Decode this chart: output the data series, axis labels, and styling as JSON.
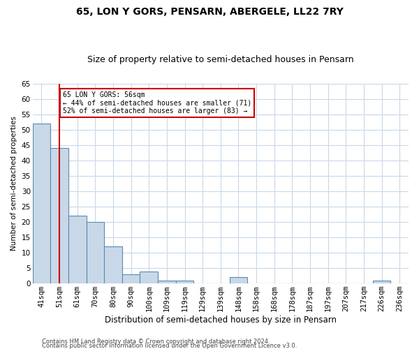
{
  "title1": "65, LON Y GORS, PENSARN, ABERGELE, LL22 7RY",
  "title2": "Size of property relative to semi-detached houses in Pensarn",
  "xlabel": "Distribution of semi-detached houses by size in Pensarn",
  "ylabel": "Number of semi-detached properties",
  "categories": [
    "41sqm",
    "51sqm",
    "61sqm",
    "70sqm",
    "80sqm",
    "90sqm",
    "100sqm",
    "109sqm",
    "119sqm",
    "129sqm",
    "139sqm",
    "148sqm",
    "158sqm",
    "168sqm",
    "178sqm",
    "187sqm",
    "197sqm",
    "207sqm",
    "217sqm",
    "226sqm",
    "236sqm"
  ],
  "values": [
    52,
    44,
    22,
    20,
    12,
    3,
    4,
    1,
    1,
    0,
    0,
    2,
    0,
    0,
    0,
    0,
    0,
    0,
    0,
    1,
    0
  ],
  "bar_color": "#c8d8e8",
  "bar_edge_color": "#5a8ab0",
  "vline_x": 1,
  "vline_color": "#cc0000",
  "ylim": [
    0,
    65
  ],
  "yticks": [
    0,
    5,
    10,
    15,
    20,
    25,
    30,
    35,
    40,
    45,
    50,
    55,
    60,
    65
  ],
  "annotation_text": "65 LON Y GORS: 56sqm\n← 44% of semi-detached houses are smaller (71)\n52% of semi-detached houses are larger (83) →",
  "annotation_box_color": "#ffffff",
  "annotation_box_edge": "#cc0000",
  "footer1": "Contains HM Land Registry data © Crown copyright and database right 2024.",
  "footer2": "Contains public sector information licensed under the Open Government Licence v3.0.",
  "bg_color": "#ffffff",
  "grid_color": "#c8d8e8",
  "title1_fontsize": 10,
  "title2_fontsize": 9,
  "xlabel_fontsize": 8.5,
  "ylabel_fontsize": 7.5,
  "tick_fontsize": 7.5,
  "annotation_fontsize": 7,
  "footer_fontsize": 6
}
